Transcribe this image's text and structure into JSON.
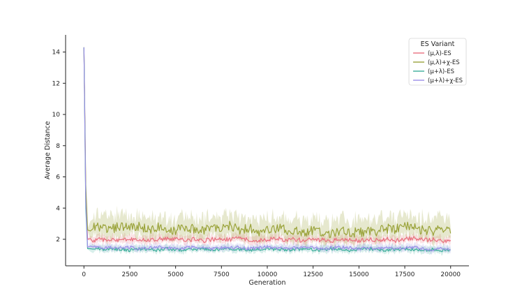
{
  "chart_data": {
    "type": "line",
    "xlabel": "Generation",
    "ylabel": "Average Distance",
    "xlim": [
      -1000,
      21000
    ],
    "ylim": [
      0.3,
      15.1
    ],
    "xticks": [
      0,
      2500,
      5000,
      7500,
      10000,
      12500,
      15000,
      17500,
      20000
    ],
    "xtick_labels": [
      "0",
      "2500",
      "5000",
      "7500",
      "10000",
      "12500",
      "15000",
      "17500",
      "20000"
    ],
    "yticks": [
      2,
      4,
      6,
      8,
      10,
      12,
      14
    ],
    "ytick_labels": [
      "2",
      "4",
      "6",
      "8",
      "10",
      "12",
      "14"
    ],
    "grid": false,
    "legend": {
      "title": "ES Variant",
      "placement": "top-right"
    },
    "series": [
      {
        "name": "(μ,λ)-ES",
        "color": "#e8707e",
        "x": [
          0,
          100,
          200,
          500,
          1000,
          1500,
          2000,
          2500,
          3000,
          3500,
          4000,
          4500,
          5000,
          5500,
          6000,
          6500,
          7000,
          7500,
          8000,
          8500,
          9000,
          9500,
          10000,
          10500,
          11000,
          11500,
          12000,
          12500,
          13000,
          13500,
          14000,
          14500,
          15000,
          15500,
          16000,
          16500,
          17000,
          17500,
          18000,
          18500,
          19000,
          19500,
          20000
        ],
        "y": [
          14.3,
          5.0,
          2.0,
          1.9,
          2.0,
          1.95,
          1.9,
          2.0,
          1.95,
          1.9,
          2.0,
          2.05,
          2.0,
          1.95,
          2.0,
          1.9,
          2.0,
          1.95,
          2.0,
          2.05,
          2.0,
          1.9,
          2.0,
          2.05,
          1.95,
          2.0,
          1.9,
          2.0,
          1.95,
          1.9,
          2.0,
          1.95,
          1.9,
          2.0,
          1.95,
          2.0,
          1.9,
          2.0,
          2.05,
          1.95,
          2.0,
          1.9,
          1.95
        ]
      },
      {
        "name": "(μ,λ)+χ-ES",
        "color": "#9aa33a",
        "x": [
          0,
          100,
          200,
          500,
          1000,
          1500,
          2000,
          2500,
          3000,
          3500,
          4000,
          4500,
          5000,
          5500,
          6000,
          6500,
          7000,
          7500,
          8000,
          8500,
          9000,
          9500,
          10000,
          10500,
          11000,
          11500,
          12000,
          12500,
          13000,
          13500,
          14000,
          14500,
          15000,
          15500,
          16000,
          16500,
          17000,
          17500,
          18000,
          18500,
          19000,
          19500,
          20000
        ],
        "y": [
          14.3,
          5.5,
          2.6,
          2.9,
          2.8,
          2.6,
          2.9,
          2.7,
          2.8,
          2.6,
          2.8,
          2.7,
          2.6,
          2.8,
          2.7,
          2.6,
          2.8,
          2.7,
          2.9,
          2.6,
          2.7,
          2.5,
          2.6,
          2.7,
          2.6,
          2.5,
          2.4,
          2.6,
          2.5,
          2.4,
          2.6,
          2.5,
          2.4,
          2.6,
          2.5,
          2.7,
          2.6,
          2.9,
          2.7,
          2.6,
          2.5,
          2.6,
          2.5
        ]
      },
      {
        "name": "(μ+λ)-ES",
        "color": "#3cae9a",
        "x": [
          0,
          100,
          200,
          500,
          1000,
          1500,
          2000,
          2500,
          3000,
          3500,
          4000,
          4500,
          5000,
          5500,
          6000,
          6500,
          7000,
          7500,
          8000,
          8500,
          9000,
          9500,
          10000,
          10500,
          11000,
          11500,
          12000,
          12500,
          13000,
          13500,
          14000,
          14500,
          15000,
          15500,
          16000,
          16500,
          17000,
          17500,
          18000,
          18500,
          19000,
          19500,
          20000
        ],
        "y": [
          14.3,
          4.0,
          1.4,
          1.4,
          1.35,
          1.4,
          1.35,
          1.3,
          1.4,
          1.35,
          1.3,
          1.4,
          1.35,
          1.3,
          1.35,
          1.4,
          1.3,
          1.35,
          1.4,
          1.35,
          1.3,
          1.35,
          1.4,
          1.35,
          1.3,
          1.35,
          1.4,
          1.35,
          1.3,
          1.4,
          1.35,
          1.3,
          1.35,
          1.4,
          1.35,
          1.3,
          1.35,
          1.4,
          1.35,
          1.3,
          1.35,
          1.3,
          1.35
        ]
      },
      {
        "name": "(μ+λ)+χ-ES",
        "color": "#9b8fe8",
        "x": [
          0,
          100,
          200,
          500,
          1000,
          1500,
          2000,
          2500,
          3000,
          3500,
          4000,
          4500,
          5000,
          5500,
          6000,
          6500,
          7000,
          7500,
          8000,
          8500,
          9000,
          9500,
          10000,
          10500,
          11000,
          11500,
          12000,
          12500,
          13000,
          13500,
          14000,
          14500,
          15000,
          15500,
          16000,
          16500,
          17000,
          17500,
          18000,
          18500,
          19000,
          19500,
          20000
        ],
        "y": [
          14.3,
          4.5,
          1.5,
          1.5,
          1.45,
          1.5,
          1.45,
          1.5,
          1.4,
          1.45,
          1.5,
          1.45,
          1.4,
          1.45,
          1.5,
          1.45,
          1.4,
          1.45,
          1.5,
          1.45,
          1.4,
          1.45,
          1.5,
          1.45,
          1.4,
          1.45,
          1.5,
          1.45,
          1.4,
          1.45,
          1.5,
          1.45,
          1.4,
          1.45,
          1.4,
          1.45,
          1.4,
          1.45,
          1.5,
          1.4,
          1.35,
          1.4,
          1.35
        ]
      }
    ]
  }
}
